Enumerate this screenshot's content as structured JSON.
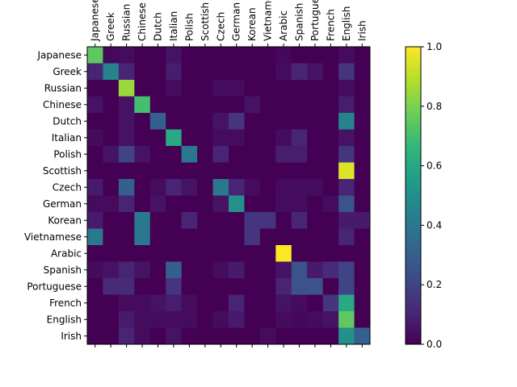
{
  "chart_data": {
    "type": "heatmap",
    "categories": [
      "Japanese",
      "Greek",
      "Russian",
      "Chinese",
      "Dutch",
      "Italian",
      "Polish",
      "Scottish",
      "Czech",
      "German",
      "Korean",
      "Vietnamese",
      "Arabic",
      "Spanish",
      "Portuguese",
      "French",
      "English",
      "Irish"
    ],
    "z": [
      [
        0.75,
        0.02,
        0.03,
        0,
        0,
        0.05,
        0,
        0,
        0,
        0,
        0,
        0,
        0.02,
        0,
        0,
        0,
        0.03,
        0
      ],
      [
        0.1,
        0.45,
        0.1,
        0,
        0,
        0.08,
        0,
        0,
        0,
        0,
        0,
        0,
        0.03,
        0.1,
        0.05,
        0,
        0.15,
        0
      ],
      [
        0,
        0,
        0.85,
        0,
        0,
        0.03,
        0,
        0,
        0.03,
        0.03,
        0,
        0,
        0,
        0,
        0,
        0,
        0.03,
        0
      ],
      [
        0.05,
        0,
        0.05,
        0.7,
        0,
        0,
        0,
        0,
        0,
        0,
        0.05,
        0,
        0,
        0,
        0,
        0,
        0.08,
        0
      ],
      [
        0,
        0,
        0.05,
        0,
        0.3,
        0,
        0,
        0,
        0.05,
        0.15,
        0,
        0,
        0,
        0,
        0,
        0,
        0.45,
        0
      ],
      [
        0.03,
        0,
        0.05,
        0,
        0,
        0.6,
        0,
        0,
        0.03,
        0.03,
        0,
        0,
        0.03,
        0.1,
        0,
        0,
        0.05,
        0
      ],
      [
        0,
        0.05,
        0.2,
        0.05,
        0,
        0,
        0.4,
        0,
        0.1,
        0,
        0,
        0,
        0.08,
        0.08,
        0,
        0,
        0.15,
        0
      ],
      [
        0,
        0,
        0,
        0,
        0,
        0,
        0,
        0,
        0,
        0,
        0,
        0,
        0,
        0,
        0,
        0,
        0.95,
        0
      ],
      [
        0.07,
        0,
        0.3,
        0,
        0.03,
        0.1,
        0.05,
        0,
        0.4,
        0.1,
        0.03,
        0,
        0.03,
        0.03,
        0.03,
        0,
        0.1,
        0
      ],
      [
        0.03,
        0.03,
        0.1,
        0,
        0.05,
        0,
        0,
        0,
        0.05,
        0.5,
        0,
        0,
        0.03,
        0.03,
        0,
        0.03,
        0.25,
        0
      ],
      [
        0.07,
        0,
        0,
        0.4,
        0,
        0,
        0.1,
        0,
        0,
        0,
        0.15,
        0.15,
        0,
        0.1,
        0,
        0,
        0.07,
        0.07
      ],
      [
        0.4,
        0,
        0,
        0.4,
        0,
        0,
        0,
        0,
        0,
        0,
        0.15,
        0,
        0,
        0,
        0,
        0,
        0.1,
        0
      ],
      [
        0,
        0,
        0,
        0,
        0,
        0,
        0,
        0,
        0,
        0,
        0,
        0,
        1.0,
        0,
        0,
        0,
        0,
        0
      ],
      [
        0.03,
        0.05,
        0.1,
        0.05,
        0,
        0.3,
        0,
        0,
        0.03,
        0.07,
        0,
        0,
        0.05,
        0.25,
        0.07,
        0.12,
        0.2,
        0
      ],
      [
        0,
        0.12,
        0.12,
        0,
        0,
        0.15,
        0,
        0,
        0,
        0,
        0,
        0,
        0.1,
        0.25,
        0.25,
        0,
        0.2,
        0
      ],
      [
        0,
        0,
        0.03,
        0.03,
        0.05,
        0.08,
        0.03,
        0,
        0,
        0.1,
        0,
        0,
        0.05,
        0.03,
        0,
        0.15,
        0.6,
        0
      ],
      [
        0,
        0,
        0.07,
        0.03,
        0.03,
        0.03,
        0.03,
        0,
        0.03,
        0.07,
        0,
        0,
        0.03,
        0.02,
        0.03,
        0.05,
        0.75,
        0
      ],
      [
        0,
        0,
        0.1,
        0.03,
        0,
        0.05,
        0,
        0,
        0,
        0,
        0,
        0.03,
        0,
        0,
        0,
        0,
        0.5,
        0.3
      ]
    ],
    "colormap": "viridis",
    "zlim": [
      0,
      1.0
    ],
    "zticks": [
      {
        "value": 0,
        "label": "0.0"
      },
      0.2,
      0.4,
      0.6,
      0.8,
      {
        "value": 1,
        "label": "1.0"
      }
    ]
  }
}
